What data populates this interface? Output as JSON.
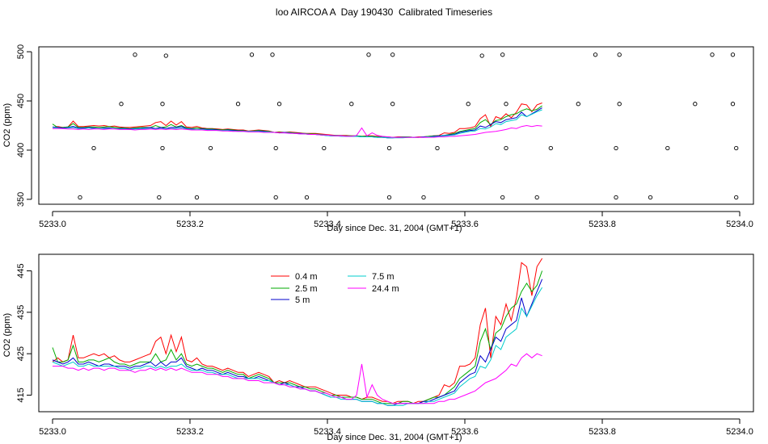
{
  "title": "loo AIRCOA A  Day 190430  Calibrated Timeseries",
  "chart_data": [
    {
      "type": "line",
      "xlabel": "Day since Dec. 31, 2004 (GMT+1)",
      "ylabel": "CO2 (ppm)",
      "xlim": [
        5232.98,
        5234.02
      ],
      "ylim": [
        345,
        505
      ],
      "xticks": [
        "5233.0",
        "5233.2",
        "5233.4",
        "5233.6",
        "5233.8",
        "5234.0"
      ],
      "yticks": [
        "350",
        "400",
        "450",
        "500"
      ],
      "colors": [
        "#ff0000",
        "#00aa00",
        "#0000cc",
        "#00cccc",
        "#ff00ff"
      ],
      "calibration_points": {
        "x": [
          5233.04,
          5233.06,
          5233.1,
          5233.12,
          5233.155,
          5233.16,
          5233.16,
          5233.165,
          5233.21,
          5233.23,
          5233.27,
          5233.29,
          5233.32,
          5233.325,
          5233.325,
          5233.33,
          5233.37,
          5233.395,
          5233.435,
          5233.46,
          5233.49,
          5233.49,
          5233.495,
          5233.495,
          5233.54,
          5233.56,
          5233.605,
          5233.625,
          5233.655,
          5233.655,
          5233.66,
          5233.66,
          5233.705,
          5233.725,
          5233.765,
          5233.79,
          5233.82,
          5233.82,
          5233.825,
          5233.825,
          5233.87,
          5233.895,
          5233.935,
          5233.96,
          5233.99,
          5233.99,
          5233.995,
          5233.995
        ],
        "y": [
          352,
          402,
          447,
          497,
          352,
          402,
          447,
          496,
          352,
          402,
          447,
          497,
          497,
          352,
          402,
          447,
          352,
          402,
          447,
          497,
          352,
          402,
          447,
          497,
          352,
          402,
          447,
          496,
          497,
          352,
          402,
          447,
          352,
          402,
          447,
          497,
          352,
          402,
          447,
          497,
          352,
          402,
          447,
          497,
          497,
          447,
          402,
          352
        ]
      }
    },
    {
      "type": "line",
      "xlabel": "Day since Dec. 31, 2004 (GMT+1)",
      "ylabel": "CO2 (ppm)",
      "xlim": [
        5232.98,
        5234.02
      ],
      "ylim": [
        411,
        449
      ],
      "xticks": [
        "5233.0",
        "5233.2",
        "5233.4",
        "5233.6",
        "5233.8",
        "5234.0"
      ],
      "yticks": [
        "415",
        "425",
        "435",
        "445"
      ],
      "legend": {
        "placement": "top-center",
        "entries": [
          {
            "label": "0.4 m",
            "color": "#ff0000"
          },
          {
            "label": "7.5 m",
            "color": "#00cccc"
          },
          {
            "label": "2.5 m",
            "color": "#00aa00"
          },
          {
            "label": "24.4 m",
            "color": "#ff00ff"
          },
          {
            "label": "5 m",
            "color": "#0000cc"
          }
        ]
      },
      "x_start": 5233.0,
      "x_step": 0.0075,
      "series": [
        {
          "name": "0.4 m",
          "color": "#ff0000",
          "values": [
            423.0,
            424.0,
            423.0,
            423.5,
            429.5,
            424.0,
            424.0,
            424.5,
            425.0,
            424.5,
            425.0,
            424.0,
            424.5,
            423.5,
            423.0,
            423.0,
            423.5,
            424.0,
            424.5,
            425.0,
            428.0,
            429.0,
            425.0,
            429.5,
            425.5,
            429.0,
            423.5,
            423.0,
            424.0,
            422.5,
            422.0,
            422.0,
            421.5,
            421.0,
            421.5,
            421.0,
            420.5,
            420.5,
            419.5,
            420.0,
            420.5,
            420.0,
            419.5,
            418.0,
            418.5,
            418.0,
            418.5,
            418.0,
            417.5,
            417.0,
            417.0,
            417.0,
            416.5,
            416.0,
            415.5,
            415.0,
            415.0,
            415.0,
            414.5,
            414.5,
            414.0,
            414.5,
            414.5,
            414.0,
            413.5,
            413.5,
            413.0,
            413.5,
            413.5,
            413.5,
            413.0,
            413.5,
            413.5,
            414.0,
            414.5,
            415.0,
            417.5,
            417.0,
            418.0,
            422.0,
            422.0,
            422.5,
            424.0,
            432.0,
            436.0,
            424.0,
            434.0,
            432.0,
            437.0,
            433.0,
            438.5,
            447.0,
            446.0,
            439.0,
            446.0,
            448.0
          ]
        },
        {
          "name": "2.5 m",
          "color": "#00aa00",
          "values": [
            426.5,
            423.0,
            423.0,
            423.5,
            427.0,
            423.0,
            423.0,
            423.5,
            423.5,
            423.0,
            423.5,
            424.0,
            423.0,
            422.5,
            422.5,
            422.0,
            422.5,
            423.0,
            423.0,
            423.0,
            425.0,
            423.0,
            423.5,
            426.0,
            423.5,
            425.0,
            422.5,
            422.0,
            422.5,
            422.0,
            421.5,
            421.5,
            421.0,
            420.5,
            421.0,
            420.5,
            420.0,
            420.0,
            419.0,
            419.5,
            420.0,
            419.5,
            419.0,
            418.0,
            418.0,
            418.0,
            418.0,
            417.5,
            417.0,
            417.0,
            416.5,
            416.5,
            416.0,
            415.5,
            415.0,
            415.0,
            414.5,
            414.5,
            414.5,
            414.5,
            414.0,
            414.0,
            414.0,
            413.5,
            413.0,
            413.0,
            413.0,
            413.0,
            413.5,
            413.5,
            413.0,
            413.0,
            413.5,
            414.0,
            414.5,
            414.5,
            415.0,
            416.0,
            417.0,
            419.0,
            420.0,
            421.0,
            422.0,
            428.0,
            431.0,
            426.0,
            430.0,
            431.0,
            434.0,
            436.0,
            437.0,
            440.0,
            442.0,
            440.0,
            441.5,
            445.0
          ]
        },
        {
          "name": "5 m",
          "color": "#0000cc",
          "values": [
            423.5,
            423.0,
            422.5,
            423.0,
            424.0,
            422.5,
            422.5,
            423.0,
            422.5,
            422.0,
            422.5,
            422.5,
            422.0,
            422.0,
            422.0,
            421.5,
            422.0,
            422.0,
            422.5,
            423.0,
            422.0,
            423.0,
            422.0,
            423.0,
            423.0,
            424.0,
            422.0,
            421.5,
            421.0,
            421.5,
            421.0,
            421.0,
            420.5,
            420.0,
            420.5,
            420.0,
            419.5,
            419.5,
            419.0,
            419.0,
            419.5,
            419.0,
            418.5,
            418.0,
            417.5,
            418.0,
            417.5,
            417.0,
            417.0,
            416.5,
            416.0,
            416.0,
            415.5,
            415.0,
            414.5,
            414.5,
            414.5,
            414.0,
            414.0,
            414.0,
            413.5,
            413.5,
            413.5,
            413.0,
            413.0,
            412.5,
            412.5,
            413.0,
            413.0,
            413.0,
            413.0,
            413.0,
            413.5,
            413.5,
            414.0,
            414.5,
            415.0,
            415.5,
            416.0,
            418.0,
            419.0,
            420.0,
            420.5,
            424.5,
            423.0,
            426.0,
            429.0,
            428.0,
            431.0,
            432.0,
            433.0,
            438.5,
            434.0,
            437.0,
            440.0,
            443.0
          ]
        },
        {
          "name": "7.5 m",
          "color": "#00cccc",
          "values": [
            423.0,
            422.5,
            422.0,
            422.5,
            423.0,
            422.0,
            422.0,
            422.5,
            422.0,
            422.0,
            422.0,
            422.0,
            422.0,
            421.5,
            421.5,
            421.0,
            421.5,
            421.5,
            422.0,
            422.0,
            421.5,
            422.0,
            421.5,
            422.0,
            422.0,
            422.5,
            421.5,
            421.0,
            421.0,
            421.0,
            420.5,
            420.5,
            420.0,
            420.0,
            420.0,
            419.5,
            419.0,
            419.0,
            419.0,
            419.0,
            419.0,
            418.5,
            418.5,
            418.0,
            417.5,
            417.5,
            417.5,
            417.0,
            416.5,
            416.5,
            416.0,
            416.0,
            415.5,
            415.0,
            414.5,
            414.5,
            414.0,
            414.0,
            414.0,
            414.0,
            413.5,
            413.5,
            413.5,
            413.0,
            413.0,
            412.5,
            412.5,
            412.5,
            412.5,
            413.0,
            413.0,
            413.0,
            413.0,
            413.5,
            413.5,
            414.0,
            414.5,
            415.0,
            415.5,
            417.0,
            418.0,
            419.0,
            419.5,
            422.0,
            421.5,
            423.5,
            427.0,
            426.0,
            429.0,
            430.0,
            431.0,
            436.0,
            434.0,
            436.5,
            439.0,
            441.0
          ]
        },
        {
          "name": "24.4 m",
          "color": "#ff00ff",
          "values": [
            422.0,
            422.0,
            422.0,
            421.5,
            421.5,
            421.0,
            421.5,
            421.0,
            421.5,
            421.5,
            421.0,
            421.5,
            421.5,
            421.0,
            421.0,
            421.0,
            420.5,
            421.0,
            421.0,
            421.5,
            421.0,
            421.5,
            421.0,
            421.5,
            421.0,
            421.5,
            421.0,
            420.5,
            420.5,
            420.5,
            420.0,
            420.0,
            420.0,
            419.5,
            419.5,
            419.0,
            419.0,
            419.0,
            418.5,
            418.5,
            418.5,
            418.0,
            418.0,
            418.0,
            417.5,
            417.5,
            417.0,
            417.0,
            416.5,
            416.5,
            416.0,
            416.0,
            415.5,
            415.5,
            415.0,
            414.5,
            414.5,
            414.0,
            414.0,
            415.0,
            422.5,
            414.5,
            417.5,
            415.0,
            414.0,
            413.5,
            413.0,
            413.0,
            413.0,
            413.0,
            413.0,
            413.0,
            413.0,
            413.0,
            413.0,
            413.5,
            413.5,
            414.0,
            414.0,
            414.5,
            415.0,
            415.5,
            416.0,
            417.0,
            418.0,
            418.5,
            419.0,
            420.0,
            421.0,
            422.5,
            422.0,
            424.0,
            425.0,
            424.0,
            425.0,
            424.5
          ]
        }
      ]
    }
  ]
}
